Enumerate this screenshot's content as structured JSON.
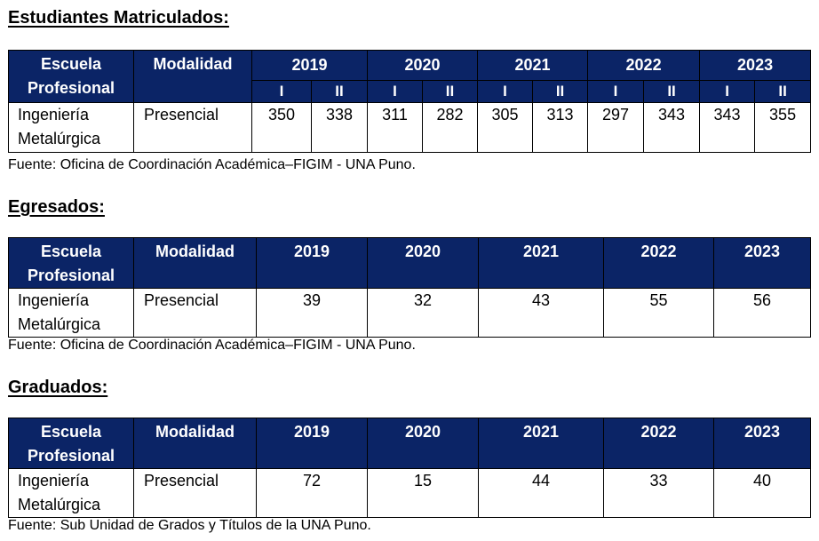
{
  "enrolled": {
    "title": "Estudiantes Matriculados:",
    "header_school": "Escuela Profesional",
    "header_mode": "Modalidad",
    "years": [
      "2019",
      "2020",
      "2021",
      "2022",
      "2023"
    ],
    "semesters": [
      "I",
      "II",
      "I",
      "II",
      "I",
      "II",
      "I",
      "II",
      "I",
      "II"
    ],
    "row": {
      "school": "Ingeniería Metalúrgica",
      "mode": "Presencial",
      "values": [
        "350",
        "338",
        "311",
        "282",
        "305",
        "313",
        "297",
        "343",
        "343",
        "355"
      ]
    },
    "source": "Fuente: Oficina de Coordinación Académica–FIGIM - UNA Puno."
  },
  "graduates": {
    "title": "Egresados:",
    "header_school": "Escuela Profesional",
    "header_mode": "Modalidad",
    "years": [
      "2019",
      "2020",
      "2021",
      "2022",
      "2023"
    ],
    "row": {
      "school": "Ingeniería Metalúrgica",
      "mode": "Presencial",
      "values": [
        "39",
        "32",
        "43",
        "55",
        "56"
      ]
    },
    "source": "Fuente: Oficina de Coordinación Académica–FIGIM - UNA Puno."
  },
  "degrees": {
    "title": "Graduados:",
    "header_school": "Escuela Profesional",
    "header_mode": "Modalidad",
    "years": [
      "2019",
      "2020",
      "2021",
      "2022",
      "2023"
    ],
    "row": {
      "school": "Ingeniería Metalúrgica",
      "mode": "Presencial",
      "values": [
        "72",
        "15",
        "44",
        "33",
        "40"
      ]
    },
    "source": "Fuente: Sub Unidad de Grados y Títulos de la UNA Puno."
  },
  "colors": {
    "header_bg": "#0b2466",
    "header_text": "#ffffff"
  }
}
